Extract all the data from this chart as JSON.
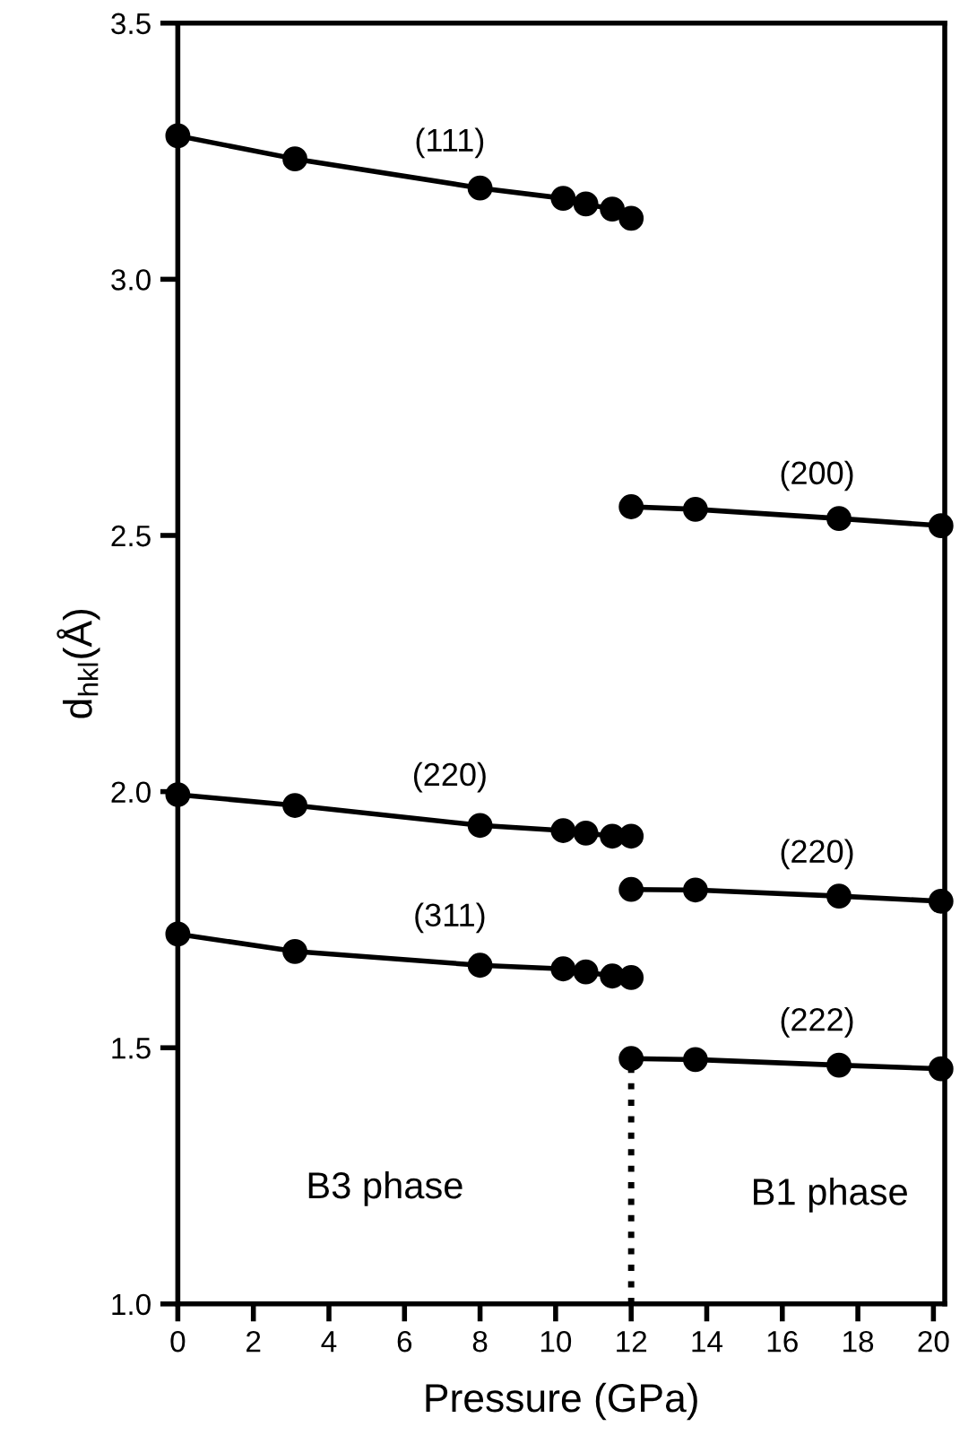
{
  "chart_data": {
    "type": "line",
    "xlabel": "Pressure (GPa)",
    "ylabel": "d$_{hkl}$(Å)",
    "xlim": [
      0,
      20.3
    ],
    "xticks": [
      0,
      2,
      4,
      6,
      8,
      10,
      12,
      14,
      16,
      18,
      20
    ],
    "ylim": [
      1.0,
      3.5
    ],
    "yticks": [
      {
        "value": 1,
        "label": "1.0"
      },
      1.5,
      {
        "value": 2,
        "label": "2.0"
      },
      2.5,
      {
        "value": 3,
        "label": "3.0"
      },
      3.5
    ],
    "grid": false,
    "legend": false,
    "marker": "circle",
    "line_style": "solid",
    "series": [
      {
        "name": "(111)",
        "color": "#000000",
        "x": [
          0,
          3.1,
          8.0,
          10.2,
          10.8,
          11.5,
          12.0
        ],
        "values": [
          3.28,
          3.235,
          3.178,
          3.158,
          3.147,
          3.137,
          3.119
        ]
      },
      {
        "name": "(200)",
        "color": "#000000",
        "x": [
          12.0,
          13.7,
          17.5,
          20.2
        ],
        "values": [
          2.556,
          2.551,
          2.533,
          2.519
        ]
      },
      {
        "name": "(220)",
        "color": "#000000",
        "x": [
          0,
          3.1,
          8.0,
          10.2,
          10.8,
          11.5,
          12.0
        ],
        "values": [
          1.994,
          1.973,
          1.934,
          1.924,
          1.919,
          1.913,
          1.913
        ]
      },
      {
        "name": "(220)",
        "color": "#000000",
        "x": [
          12.0,
          13.7,
          17.5,
          20.2
        ],
        "values": [
          1.809,
          1.808,
          1.796,
          1.786
        ]
      },
      {
        "name": "(311)",
        "color": "#000000",
        "x": [
          0,
          3.1,
          8.0,
          10.2,
          10.8,
          11.5,
          12.0
        ],
        "values": [
          1.722,
          1.688,
          1.661,
          1.654,
          1.648,
          1.64,
          1.637
        ]
      },
      {
        "name": "(222)",
        "color": "#000000",
        "x": [
          12.0,
          13.7,
          17.5,
          20.2
        ],
        "values": [
          1.479,
          1.477,
          1.466,
          1.459
        ]
      },
      {
        "color": "#000000",
        "x": [
          12.0,
          12.0
        ],
        "values": [
          1.0,
          1.479
        ],
        "marker": "none",
        "line_style": "dotted"
      }
    ],
    "annotations": [
      "B3 phase",
      "B1 phase"
    ]
  }
}
